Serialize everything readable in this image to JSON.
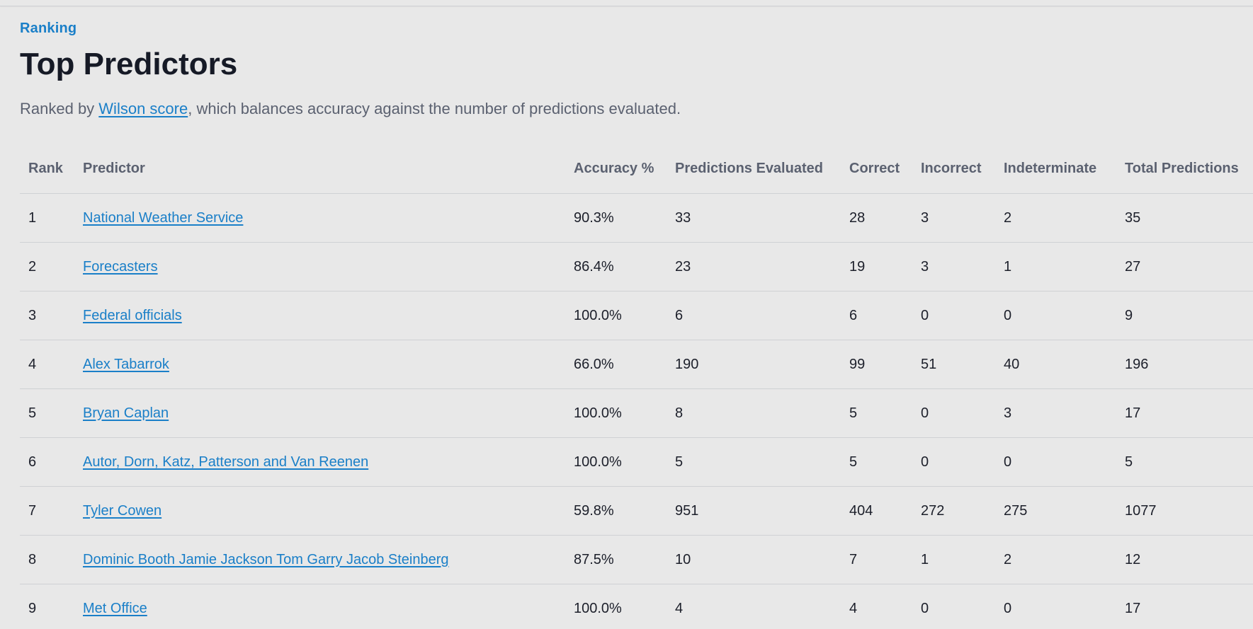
{
  "header": {
    "eyebrow": "Ranking",
    "title": "Top Predictors",
    "subtitle_prefix": "Ranked by ",
    "subtitle_link": "Wilson score",
    "subtitle_suffix": ", which balances accuracy against the number of predictions evaluated."
  },
  "table": {
    "columns": [
      "Rank",
      "Predictor",
      "Accuracy %",
      "Predictions Evaluated",
      "Correct",
      "Incorrect",
      "Indeterminate",
      "Total Predictions"
    ],
    "rows": [
      {
        "rank": "1",
        "predictor": "National Weather Service",
        "accuracy": "90.3%",
        "evaluated": "33",
        "correct": "28",
        "incorrect": "3",
        "indeterminate": "2",
        "total": "35"
      },
      {
        "rank": "2",
        "predictor": "Forecasters",
        "accuracy": "86.4%",
        "evaluated": "23",
        "correct": "19",
        "incorrect": "3",
        "indeterminate": "1",
        "total": "27"
      },
      {
        "rank": "3",
        "predictor": "Federal officials",
        "accuracy": "100.0%",
        "evaluated": "6",
        "correct": "6",
        "incorrect": "0",
        "indeterminate": "0",
        "total": "9"
      },
      {
        "rank": "4",
        "predictor": "Alex Tabarrok",
        "accuracy": "66.0%",
        "evaluated": "190",
        "correct": "99",
        "incorrect": "51",
        "indeterminate": "40",
        "total": "196"
      },
      {
        "rank": "5",
        "predictor": "Bryan Caplan",
        "accuracy": "100.0%",
        "evaluated": "8",
        "correct": "5",
        "incorrect": "0",
        "indeterminate": "3",
        "total": "17"
      },
      {
        "rank": "6",
        "predictor": "Autor, Dorn, Katz, Patterson and Van Reenen",
        "accuracy": "100.0%",
        "evaluated": "5",
        "correct": "5",
        "incorrect": "0",
        "indeterminate": "0",
        "total": "5"
      },
      {
        "rank": "7",
        "predictor": "Tyler Cowen",
        "accuracy": "59.8%",
        "evaluated": "951",
        "correct": "404",
        "incorrect": "272",
        "indeterminate": "275",
        "total": "1077"
      },
      {
        "rank": "8",
        "predictor": "Dominic Booth Jamie Jackson Tom Garry Jacob Steinberg",
        "accuracy": "87.5%",
        "evaluated": "10",
        "correct": "7",
        "incorrect": "1",
        "indeterminate": "2",
        "total": "12"
      },
      {
        "rank": "9",
        "predictor": "Met Office",
        "accuracy": "100.0%",
        "evaluated": "4",
        "correct": "4",
        "incorrect": "0",
        "indeterminate": "0",
        "total": "17"
      }
    ]
  },
  "colors": {
    "accent": "#1a7fc8",
    "background": "#e8e8e8",
    "muted_text": "#5b6170",
    "row_border": "#cfd1d4"
  }
}
